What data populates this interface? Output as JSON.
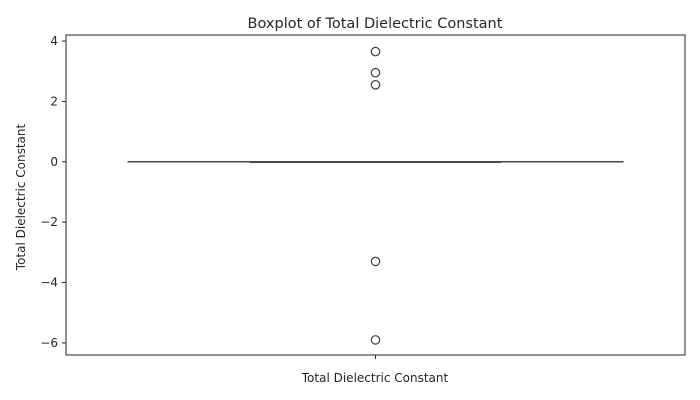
{
  "chart_data": {
    "type": "box",
    "title": "Boxplot of Total Dielectric Constant",
    "xlabel": "Total Dielectric Constant",
    "ylabel": "Total Dielectric Constant",
    "ylim": [
      -6.4,
      4.2
    ],
    "yticks": [
      4,
      2,
      0,
      -2,
      -4,
      -6
    ],
    "ytick_labels": [
      "4",
      "2",
      "0",
      "−2",
      "−4",
      "−6"
    ],
    "grid": false,
    "box": {
      "min": 0,
      "q1": 0,
      "median": 0,
      "q3": 0,
      "max": 0
    },
    "outliers": [
      3.65,
      2.95,
      2.55,
      -3.3,
      -5.9
    ],
    "colors": {
      "line": "#4a4a4a",
      "axis": "#262626",
      "outlier_edge": "#3d3d3d"
    }
  }
}
